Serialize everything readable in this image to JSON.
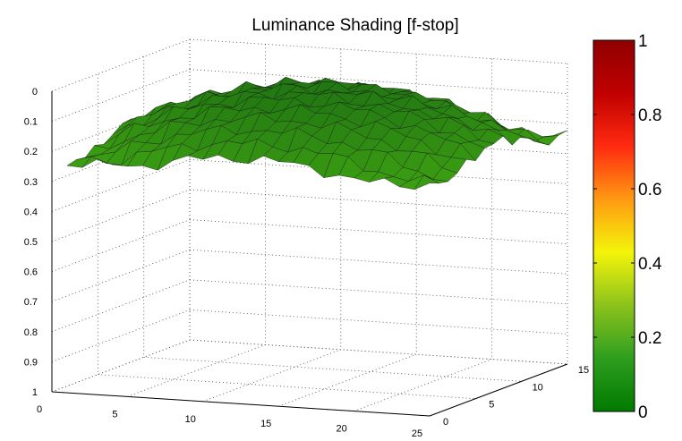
{
  "chart_data": {
    "type": "surface",
    "title": "Luminance Shading [f-stop]",
    "x_ticks": [
      "0",
      "5",
      "10",
      "15",
      "20",
      "25"
    ],
    "y_ticks": [
      "0",
      "5",
      "10",
      "15"
    ],
    "z_ticks": [
      "0",
      "0.1",
      "0.2",
      "0.3",
      "0.4",
      "0.5",
      "0.6",
      "0.7",
      "0.8",
      "0.9",
      "1"
    ],
    "xlim": [
      0,
      25
    ],
    "ylim": [
      0,
      15
    ],
    "zlim": [
      0,
      1
    ],
    "z_direction": "reversed",
    "grid": true,
    "surface_grid": {
      "x_points": 25,
      "y_points": 16,
      "x_range": [
        1,
        25
      ],
      "y_range": [
        0,
        15
      ]
    },
    "surface_z_approx": {
      "center": 0.03,
      "edge": 0.2,
      "shape": "dome"
    },
    "surface_color": "#2e8b14",
    "edge_color": "#1a1a1a",
    "colorbar": {
      "ticks": [
        "0",
        "0.2",
        "0.4",
        "0.6",
        "0.8",
        "1"
      ],
      "range": [
        0,
        1
      ],
      "colors": [
        "#007a00",
        "#2e9e1e",
        "#8cc21c",
        "#f4f50a",
        "#ff9a12",
        "#ff2a10",
        "#c00000",
        "#900000"
      ]
    }
  }
}
